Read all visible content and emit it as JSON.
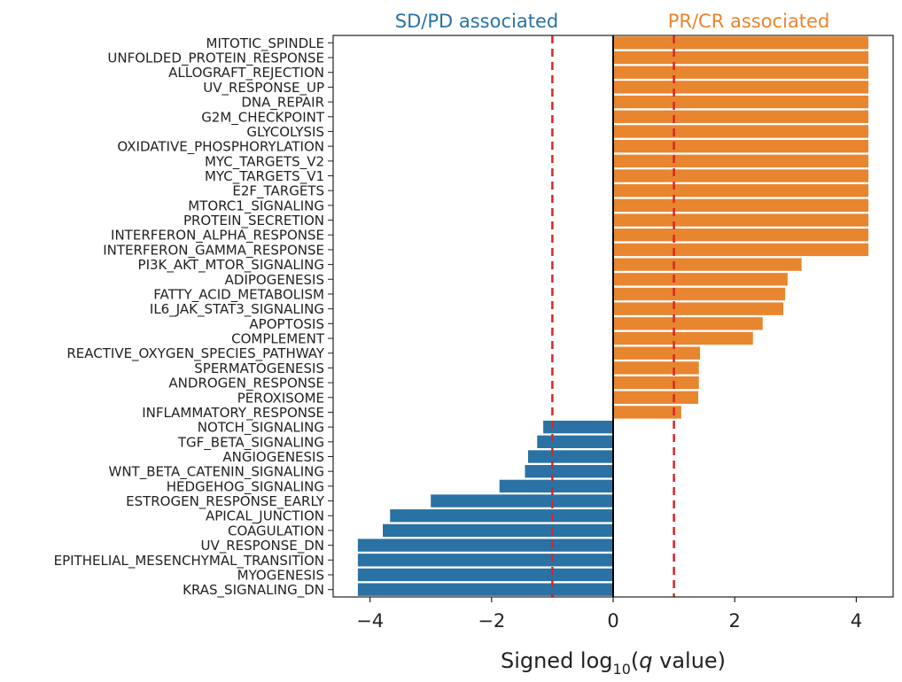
{
  "chart_data": {
    "type": "bar",
    "orientation": "horizontal",
    "xlabel_main": "Signed log",
    "xlabel_sub": "10",
    "xlabel_rest_open": "(",
    "xlabel_italic": "q",
    "xlabel_rest_close": " value)",
    "xlim": [
      -4.5,
      4.6
    ],
    "xticks": [
      -4,
      -2,
      0,
      2,
      4
    ],
    "xtick_labels": [
      "−4",
      "−2",
      "0",
      "2",
      "4"
    ],
    "threshold_lines": [
      -1,
      1
    ],
    "header_left": "SD/PD associated",
    "header_right": "PR/CR associated",
    "colors": {
      "positive": "#E8852F",
      "negative": "#2A72A3",
      "threshold": "#D62728",
      "header_left": "#2A72A3",
      "header_right": "#E8852F",
      "text": "#222222"
    },
    "categories": [
      "MITOTIC_SPINDLE",
      "UNFOLDED_PROTEIN_RESPONSE",
      "ALLOGRAFT_REJECTION",
      "UV_RESPONSE_UP",
      "DNA_REPAIR",
      "G2M_CHECKPOINT",
      "GLYCOLYSIS",
      "OXIDATIVE_PHOSPHORYLATION",
      "MYC_TARGETS_V2",
      "MYC_TARGETS_V1",
      "E2F_TARGETS",
      "MTORC1_SIGNALING",
      "PROTEIN_SECRETION",
      "INTERFERON_ALPHA_RESPONSE",
      "INTERFERON_GAMMA_RESPONSE",
      "PI3K_AKT_MTOR_SIGNALING",
      "ADIPOGENESIS",
      "FATTY_ACID_METABOLISM",
      "IL6_JAK_STAT3_SIGNALING",
      "APOPTOSIS",
      "COMPLEMENT",
      "REACTIVE_OXYGEN_SPECIES_PATHWAY",
      "SPERMATOGENESIS",
      "ANDROGEN_RESPONSE",
      "PEROXISOME",
      "INFLAMMATORY_RESPONSE",
      "NOTCH_SIGNALING",
      "TGF_BETA_SIGNALING",
      "ANGIOGENESIS",
      "WNT_BETA_CATENIN_SIGNALING",
      "HEDGEHOG_SIGNALING",
      "ESTROGEN_RESPONSE_EARLY",
      "APICAL_JUNCTION",
      "COAGULATION",
      "UV_RESPONSE_DN",
      "EPITHELIAL_MESENCHYMAL_TRANSITION",
      "MYOGENESIS",
      "KRAS_SIGNALING_DN"
    ],
    "values": [
      4.2,
      4.2,
      4.2,
      4.2,
      4.2,
      4.2,
      4.2,
      4.2,
      4.2,
      4.2,
      4.2,
      4.2,
      4.2,
      4.2,
      4.2,
      3.1,
      2.87,
      2.83,
      2.8,
      2.46,
      2.3,
      1.43,
      1.41,
      1.41,
      1.4,
      1.12,
      -1.15,
      -1.25,
      -1.4,
      -1.45,
      -1.87,
      -3.0,
      -3.67,
      -3.79,
      -4.2,
      -4.2,
      -4.2,
      -4.2
    ]
  }
}
